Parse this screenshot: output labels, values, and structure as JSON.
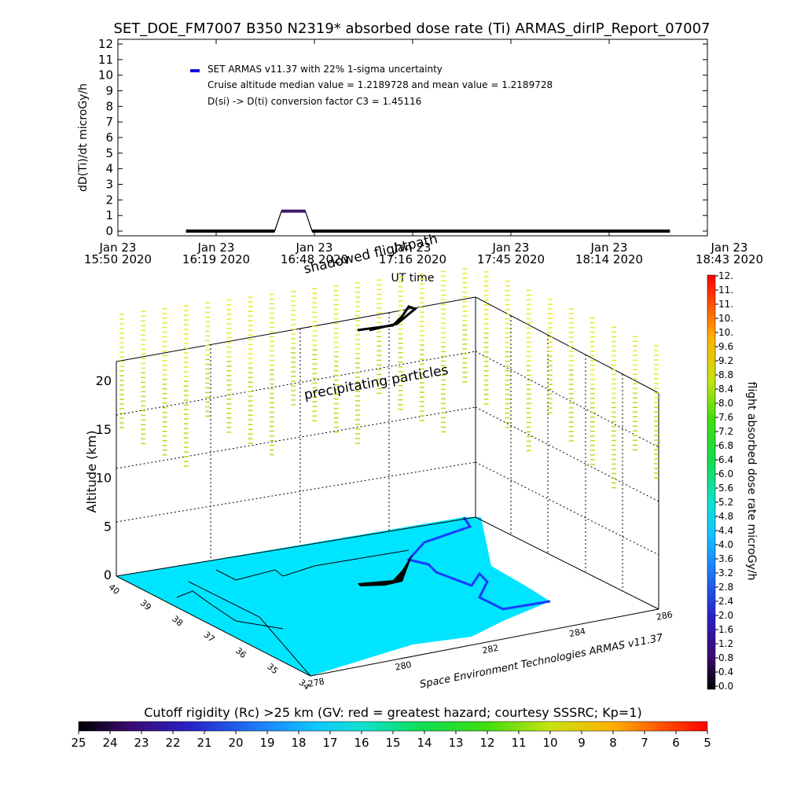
{
  "title": "SET_DOE_FM7007  B350 N2319* absorbed dose rate (Ti) ARMAS_dirIP_Report_07007",
  "colors": {
    "dose_line": "#000000",
    "dose_highlight": "#3c1a6e",
    "legend_marker": "#1010e0",
    "ground": "#00e5ff",
    "coast": "#1a3cff",
    "particles_low": "#b8dd10",
    "particles_high": "#e8ea20"
  },
  "chart_data": [
    {
      "type": "line",
      "name": "dose_rate_timeseries",
      "ylabel": "dD(Ti)/dt microGy/h",
      "xlabel": "UT time",
      "ylim": [
        0,
        12
      ],
      "yticks": [
        "0",
        "1",
        "2",
        "3",
        "4",
        "5",
        "6",
        "7",
        "8",
        "9",
        "10",
        "11",
        "12"
      ],
      "xticks": [
        {
          "line1": "Jan 23",
          "line2": "15:50 2020"
        },
        {
          "line1": "Jan 23",
          "line2": "16:19 2020"
        },
        {
          "line1": "Jan 23",
          "line2": "16:48 2020"
        },
        {
          "line1": "Jan 23",
          "line2": "17:16 2020"
        },
        {
          "line1": "Jan 23",
          "line2": "17:45 2020"
        },
        {
          "line1": "Jan 23",
          "line2": "18:14 2020"
        },
        {
          "line1": "Jan 23",
          "line2": "18:43 2020"
        }
      ],
      "xlim_minutes_after_first_tick": [
        0,
        173
      ],
      "legend": [
        "SET ARMAS v11.37 with 22% 1-sigma uncertainty",
        "Cruise altitude median value = 1.2189728 and mean value = 1.2189728",
        "D(si) -> D(ti) conversion factor C3 = 1.45116"
      ],
      "series": [
        {
          "values_minutes_after_first_tick": [
            20,
            46,
            48,
            55,
            57,
            162
          ],
          "values_dose": [
            0,
            0,
            1.22,
            1.22,
            0,
            0
          ]
        }
      ]
    },
    {
      "type": "scatter",
      "name": "3d_flight_view",
      "zlabel": "Altitude (km)",
      "zticks": [
        "0",
        "5",
        "10",
        "15",
        "20"
      ],
      "zlim": [
        0,
        22
      ],
      "lat_ticks": [
        "40",
        "39",
        "38",
        "37",
        "36",
        "35",
        "34"
      ],
      "lon_ticks": [
        "278",
        "280",
        "282",
        "284",
        "286"
      ],
      "annotations": [
        "shadowed flightpath",
        "precipitating particles"
      ],
      "credit": "Space Environment Technologies ARMAS v11.37"
    },
    {
      "type": "heatmap",
      "name": "dose_colorbar",
      "label": "flight absorbed dose rate microGy/h",
      "ticks": [
        "0.0",
        "0.4",
        "0.8",
        "1.2",
        "1.6",
        "2.0",
        "2.4",
        "2.8",
        "3.2",
        "3.6",
        "4.0",
        "4.4",
        "4.8",
        "5.2",
        "5.6",
        "6.0",
        "6.4",
        "6.8",
        "7.2",
        "7.6",
        "8.0",
        "8.4",
        "8.8",
        "9.2",
        "9.6",
        "10.",
        "10.",
        "11.",
        "11.",
        "12."
      ]
    },
    {
      "type": "heatmap",
      "name": "rigidity_colorbar",
      "label": "Cutoff rigidity (Rc) >25 km (GV: red = greatest hazard; courtesy SSSRC; Kp=1)",
      "ticks": [
        "25",
        "24",
        "23",
        "22",
        "21",
        "20",
        "19",
        "18",
        "17",
        "16",
        "15",
        "14",
        "13",
        "12",
        "11",
        "10",
        "9",
        "8",
        "7",
        "6",
        "5"
      ]
    }
  ]
}
